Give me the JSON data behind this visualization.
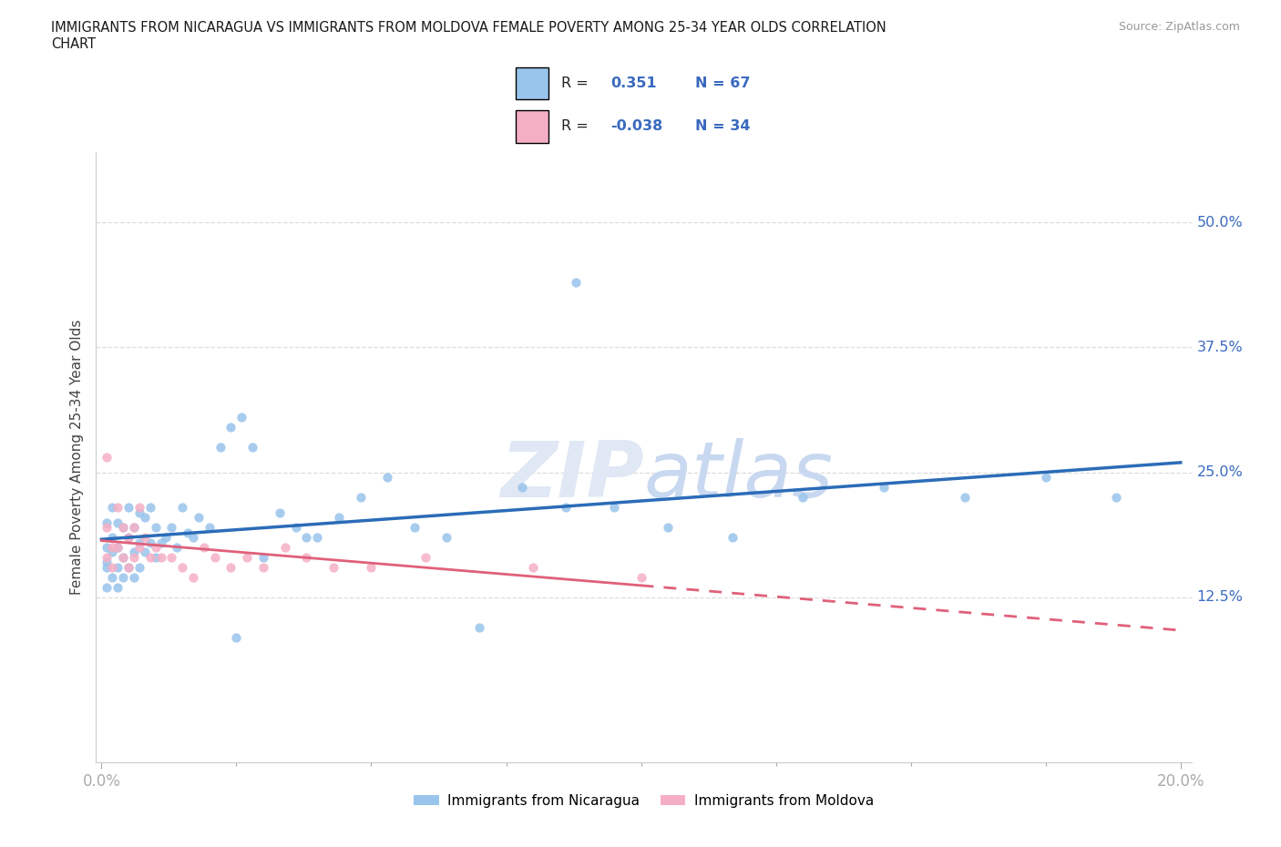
{
  "title_line1": "IMMIGRANTS FROM NICARAGUA VS IMMIGRANTS FROM MOLDOVA FEMALE POVERTY AMONG 25-34 YEAR OLDS CORRELATION",
  "title_line2": "CHART",
  "source": "Source: ZipAtlas.com",
  "ylabel": "Female Poverty Among 25-34 Year Olds",
  "xlim": [
    -0.001,
    0.202
  ],
  "ylim": [
    -0.04,
    0.57
  ],
  "ytick_positions": [
    0.125,
    0.25,
    0.375,
    0.5
  ],
  "ytick_labels": [
    "12.5%",
    "25.0%",
    "37.5%",
    "50.0%"
  ],
  "xtick_major": [
    0.0,
    0.2
  ],
  "xtick_major_labels": [
    "0.0%",
    "20.0%"
  ],
  "xtick_minor": [
    0.025,
    0.05,
    0.075,
    0.1,
    0.125,
    0.15,
    0.175
  ],
  "R_nicaragua": 0.351,
  "N_nicaragua": 67,
  "R_moldova": -0.038,
  "N_moldova": 34,
  "nicaragua_color": "#99c4ec",
  "moldova_color": "#f5afc5",
  "nicaragua_line_color": "#2b6cb8",
  "moldova_line_color": "#e0607a",
  "grid_color": "#dddddd",
  "watermark_color": "#e0e8f5",
  "nicaragua_x": [
    0.001,
    0.001,
    0.001,
    0.001,
    0.001,
    0.002,
    0.002,
    0.002,
    0.002,
    0.003,
    0.003,
    0.003,
    0.003,
    0.004,
    0.004,
    0.004,
    0.005,
    0.005,
    0.005,
    0.006,
    0.006,
    0.006,
    0.007,
    0.007,
    0.007,
    0.008,
    0.008,
    0.009,
    0.009,
    0.01,
    0.01,
    0.011,
    0.012,
    0.013,
    0.014,
    0.015,
    0.016,
    0.017,
    0.018,
    0.02,
    0.022,
    0.024,
    0.026,
    0.028,
    0.03,
    0.033,
    0.036,
    0.04,
    0.044,
    0.048,
    0.053,
    0.058,
    0.064,
    0.07,
    0.078,
    0.086,
    0.095,
    0.105,
    0.117,
    0.13,
    0.145,
    0.16,
    0.175,
    0.188,
    0.025,
    0.038,
    0.088
  ],
  "nicaragua_y": [
    0.2,
    0.175,
    0.155,
    0.135,
    0.16,
    0.215,
    0.185,
    0.17,
    0.145,
    0.2,
    0.175,
    0.155,
    0.135,
    0.195,
    0.165,
    0.145,
    0.215,
    0.185,
    0.155,
    0.195,
    0.17,
    0.145,
    0.21,
    0.18,
    0.155,
    0.205,
    0.17,
    0.215,
    0.18,
    0.195,
    0.165,
    0.18,
    0.185,
    0.195,
    0.175,
    0.215,
    0.19,
    0.185,
    0.205,
    0.195,
    0.275,
    0.295,
    0.305,
    0.275,
    0.165,
    0.21,
    0.195,
    0.185,
    0.205,
    0.225,
    0.245,
    0.195,
    0.185,
    0.095,
    0.235,
    0.215,
    0.215,
    0.195,
    0.185,
    0.225,
    0.235,
    0.225,
    0.245,
    0.225,
    0.085,
    0.185,
    0.44
  ],
  "moldova_x": [
    0.001,
    0.001,
    0.001,
    0.002,
    0.002,
    0.003,
    0.003,
    0.004,
    0.004,
    0.005,
    0.005,
    0.006,
    0.006,
    0.007,
    0.007,
    0.008,
    0.009,
    0.01,
    0.011,
    0.013,
    0.015,
    0.017,
    0.019,
    0.021,
    0.024,
    0.027,
    0.03,
    0.034,
    0.038,
    0.043,
    0.05,
    0.06,
    0.08,
    0.1
  ],
  "moldova_y": [
    0.265,
    0.195,
    0.165,
    0.175,
    0.155,
    0.215,
    0.175,
    0.195,
    0.165,
    0.185,
    0.155,
    0.195,
    0.165,
    0.215,
    0.175,
    0.185,
    0.165,
    0.175,
    0.165,
    0.165,
    0.155,
    0.145,
    0.175,
    0.165,
    0.155,
    0.165,
    0.155,
    0.175,
    0.165,
    0.155,
    0.155,
    0.165,
    0.155,
    0.145
  ]
}
